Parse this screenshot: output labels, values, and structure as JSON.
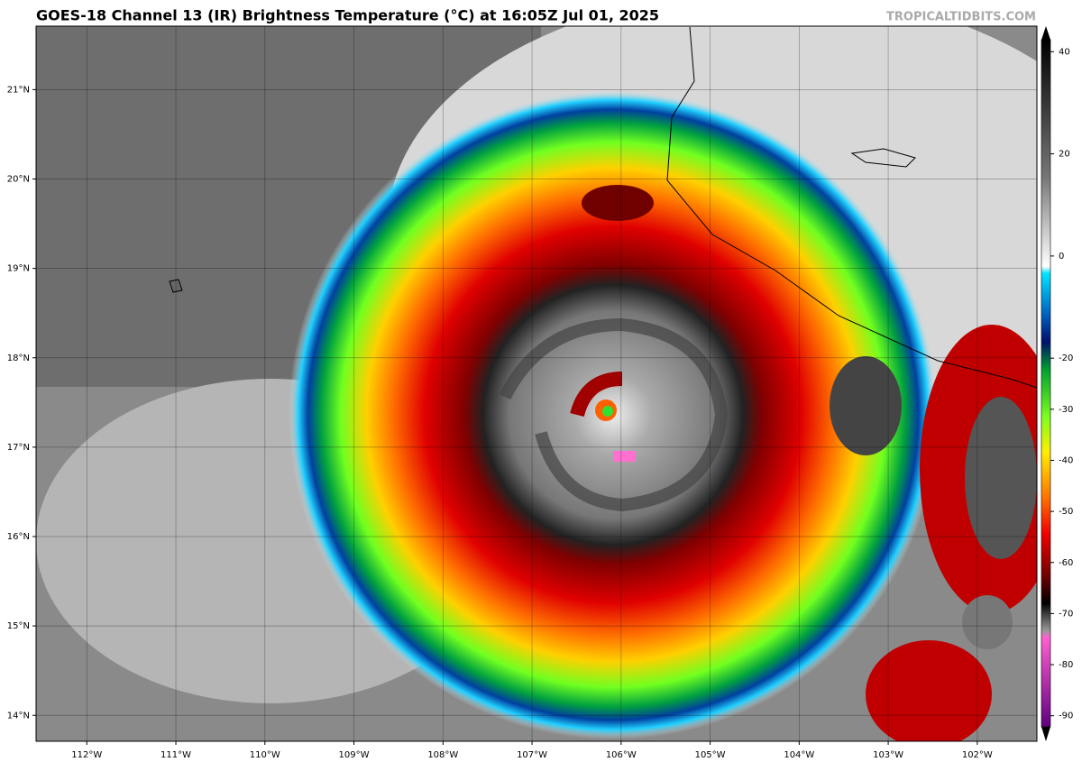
{
  "header": {
    "title": "GOES-18 Channel 13 (IR) Brightness Temperature (°C) at 16:05Z Jul 01, 2025",
    "source": "TROPICALTIDBITS.COM"
  },
  "map": {
    "xlim": [
      -112.57,
      -101.33
    ],
    "ylim": [
      13.71,
      21.71
    ],
    "xticks": [
      {
        "value": -112,
        "label": "112°W"
      },
      {
        "value": -111,
        "label": "111°W"
      },
      {
        "value": -110,
        "label": "110°W"
      },
      {
        "value": -109,
        "label": "109°W"
      },
      {
        "value": -108,
        "label": "108°W"
      },
      {
        "value": -107,
        "label": "107°W"
      },
      {
        "value": -106,
        "label": "106°W"
      },
      {
        "value": -105,
        "label": "105°W"
      },
      {
        "value": -104,
        "label": "104°W"
      },
      {
        "value": -103,
        "label": "103°W"
      },
      {
        "value": -102,
        "label": "102°W"
      }
    ],
    "yticks": [
      {
        "value": 14,
        "label": "14°N"
      },
      {
        "value": 15,
        "label": "15°N"
      },
      {
        "value": 16,
        "label": "16°N"
      },
      {
        "value": 17,
        "label": "17°N"
      },
      {
        "value": 18,
        "label": "18°N"
      },
      {
        "value": 19,
        "label": "19°N"
      },
      {
        "value": 20,
        "label": "20°N"
      },
      {
        "value": 21,
        "label": "21°N"
      }
    ],
    "grid": true
  },
  "colorbar": {
    "lim": [
      -95,
      45
    ],
    "ticks": [
      40,
      20,
      0,
      -20,
      -30,
      -40,
      -50,
      -60,
      -70,
      -80,
      -90
    ]
  }
}
